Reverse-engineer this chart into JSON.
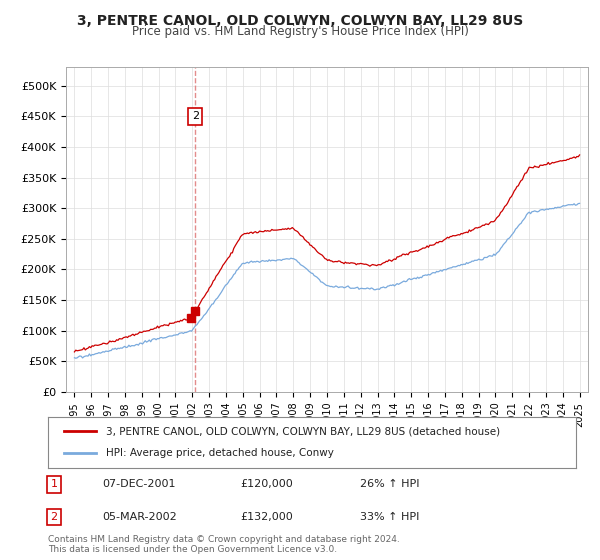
{
  "title": "3, PENTRE CANOL, OLD COLWYN, COLWYN BAY, LL29 8US",
  "subtitle": "Price paid vs. HM Land Registry's House Price Index (HPI)",
  "legend_label_red": "3, PENTRE CANOL, OLD COLWYN, COLWYN BAY, LL29 8US (detached house)",
  "legend_label_blue": "HPI: Average price, detached house, Conwy",
  "transactions": [
    {
      "label": "1",
      "date": "07-DEC-2001",
      "price": 120000,
      "hpi_pct": "26% ↑ HPI",
      "x": 2001.92
    },
    {
      "label": "2",
      "date": "05-MAR-2002",
      "price": 132000,
      "hpi_pct": "33% ↑ HPI",
      "x": 2002.18
    }
  ],
  "vline_x": 2002.18,
  "vline_color": "#e08080",
  "yticks": [
    0,
    50000,
    100000,
    150000,
    200000,
    250000,
    300000,
    350000,
    400000,
    450000,
    500000
  ],
  "ylim": [
    0,
    530000
  ],
  "xlim": [
    1994.5,
    2025.5
  ],
  "years": [
    1995,
    1996,
    1997,
    1998,
    1999,
    2000,
    2001,
    2002,
    2003,
    2004,
    2005,
    2006,
    2007,
    2008,
    2009,
    2010,
    2011,
    2012,
    2013,
    2014,
    2015,
    2016,
    2017,
    2018,
    2019,
    2020,
    2021,
    2022,
    2023,
    2024,
    2025
  ],
  "red_line_color": "#cc0000",
  "blue_line_color": "#7aaadd",
  "background_color": "#ffffff",
  "grid_color": "#dddddd",
  "footer": "Contains HM Land Registry data © Crown copyright and database right 2024.\nThis data is licensed under the Open Government Licence v3.0."
}
